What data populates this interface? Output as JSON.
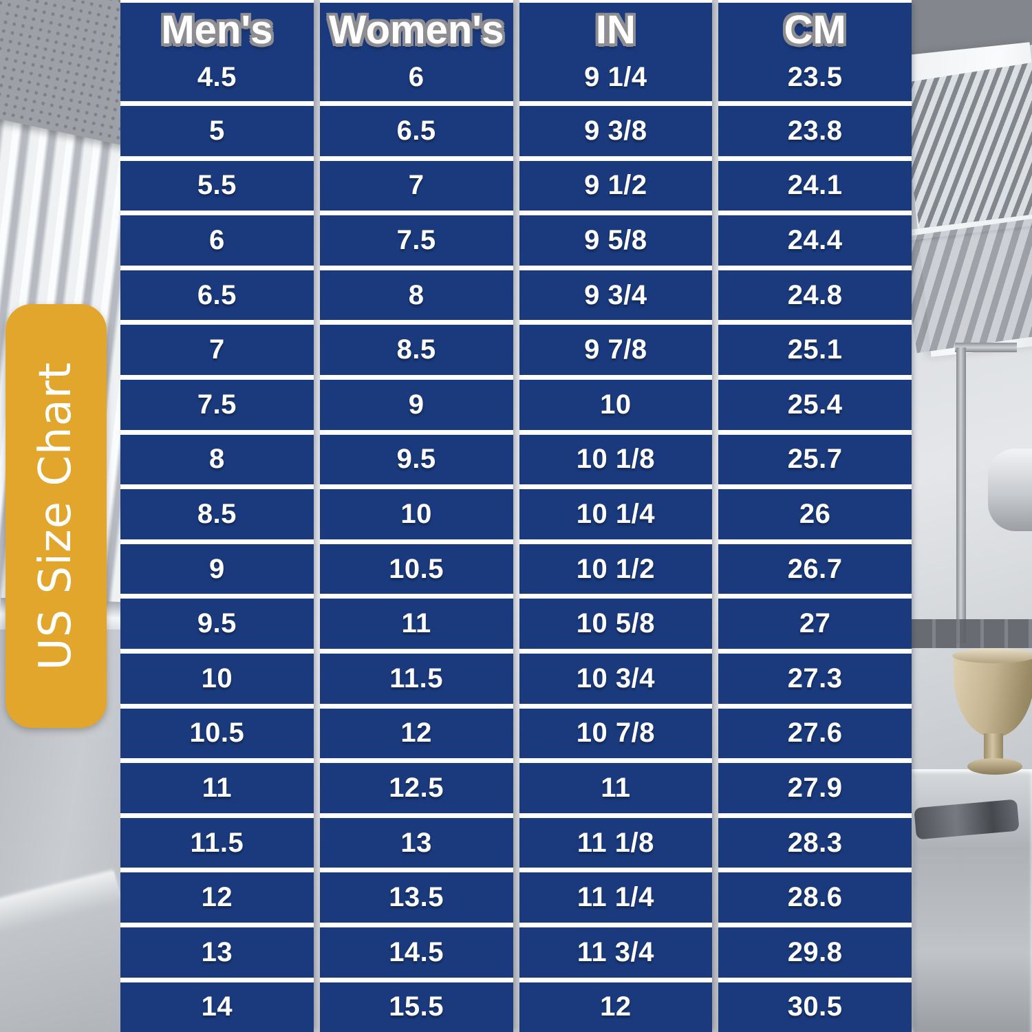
{
  "label": {
    "text": "US Size Chart"
  },
  "colors": {
    "table_blue": "#1a3a7d",
    "label_yellow": "#e3a62c",
    "row_line_white": "#ffffff",
    "header_outline_gray": "#8d8d92",
    "goblet_brass": "#c4b491"
  },
  "chart_data": {
    "type": "table",
    "title": "US Size Chart",
    "columns": [
      "Men's",
      "Women's",
      "IN",
      "CM"
    ],
    "rows": [
      [
        "4.5",
        "6",
        "9 1/4",
        "23.5"
      ],
      [
        "5",
        "6.5",
        "9 3/8",
        "23.8"
      ],
      [
        "5.5",
        "7",
        "9 1/2",
        "24.1"
      ],
      [
        "6",
        "7.5",
        "9 5/8",
        "24.4"
      ],
      [
        "6.5",
        "8",
        "9 3/4",
        "24.8"
      ],
      [
        "7",
        "8.5",
        "9 7/8",
        "25.1"
      ],
      [
        "7.5",
        "9",
        "10",
        "25.4"
      ],
      [
        "8",
        "9.5",
        "10 1/8",
        "25.7"
      ],
      [
        "8.5",
        "10",
        "10 1/4",
        "26"
      ],
      [
        "9",
        "10.5",
        "10 1/2",
        "26.7"
      ],
      [
        "9.5",
        "11",
        "10 5/8",
        "27"
      ],
      [
        "10",
        "11.5",
        "10 3/4",
        "27.3"
      ],
      [
        "10.5",
        "12",
        "10 7/8",
        "27.6"
      ],
      [
        "11",
        "12.5",
        "11",
        "27.9"
      ],
      [
        "11.5",
        "13",
        "11 1/8",
        "28.3"
      ],
      [
        "12",
        "13.5",
        "11 1/4",
        "28.6"
      ],
      [
        "13",
        "14.5",
        "11 3/4",
        "29.8"
      ],
      [
        "14",
        "15.5",
        "12",
        "30.5"
      ]
    ],
    "layout": {
      "header_position": "top",
      "grid": "white lines between rows and columns",
      "background": "grayscale commercial kitchen photo"
    }
  }
}
